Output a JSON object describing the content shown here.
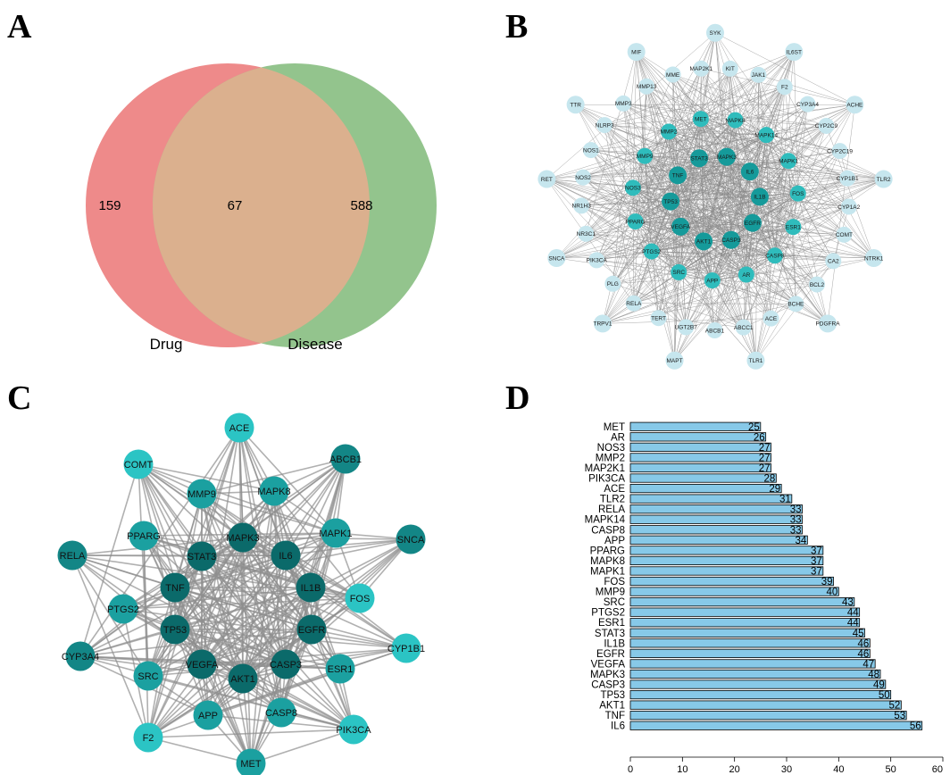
{
  "panels": {
    "a": "A",
    "b": "B",
    "c": "C",
    "d": "D"
  },
  "venn": {
    "left_only": "159",
    "intersection": "67",
    "right_only": "588",
    "left_label": "Drug",
    "right_label": "Disease",
    "left_color": "#ee8a8a",
    "right_color": "#93c48d",
    "overlap_color": "#dbb08e"
  },
  "network_b": {
    "colors": {
      "light": "#c6e6ee",
      "mid": "#2fbcbc",
      "dark": "#159a9a",
      "edge": "#8a8a8a"
    },
    "outer": [
      "SYK",
      "IL6ST",
      "ACHE",
      "TLR2",
      "NTRK1",
      "PDGFRA",
      "TLR1",
      "MAPT",
      "TRPV1",
      "SNCA",
      "RET",
      "TTR",
      "MIF"
    ],
    "middle": [
      "MAP2K1",
      "KIT",
      "JAK1",
      "F2",
      "CYP3A4",
      "CYP2C9",
      "CYP2C19",
      "CYP1B1",
      "CYP1A2",
      "COMT",
      "CA2",
      "BCL2",
      "BCHE",
      "ACE",
      "ABCC1",
      "ABCB1",
      "UGT2B7",
      "TERT",
      "RELA",
      "PLG",
      "PIK3CA",
      "NR3C1",
      "NR1H3",
      "NOS2",
      "NOS1",
      "NLRP3",
      "MMP3",
      "MMP13",
      "MME"
    ],
    "inner": [
      "MET",
      "MAPK8",
      "MAPK14",
      "MAPK1",
      "FOS",
      "ESR1",
      "CASP8",
      "AR",
      "APP",
      "SRC",
      "PTGS2",
      "PPARG",
      "NOS3",
      "MMP9",
      "MMP2"
    ],
    "core": [
      "MAPK3",
      "IL6",
      "IL1B",
      "EGFR",
      "CASP3",
      "AKT1",
      "VEGFA",
      "TP53",
      "TNF",
      "STAT3"
    ]
  },
  "network_c": {
    "nodes": [
      "ACE",
      "COMT",
      "ABCB1",
      "MMP9",
      "MAPK8",
      "PPARG",
      "MAPK3",
      "MAPK1",
      "SNCA",
      "RELA",
      "STAT3",
      "IL6",
      "TNF",
      "IL1B",
      "FOS",
      "PTGS2",
      "TP53",
      "EGFR",
      "CYP1B1",
      "CYP3A4",
      "VEGFA",
      "CASP3",
      "ESR1",
      "SRC",
      "AKT1",
      "APP",
      "CASP8",
      "F2",
      "PIK3CA",
      "MET"
    ]
  },
  "chart_data": {
    "type": "bar",
    "orientation": "horizontal",
    "categories": [
      "MET",
      "AR",
      "NOS3",
      "MMP2",
      "MAP2K1",
      "PIK3CA",
      "ACE",
      "TLR2",
      "RELA",
      "MAPK14",
      "CASP8",
      "APP",
      "PPARG",
      "MAPK8",
      "MAPK1",
      "FOS",
      "MMP9",
      "SRC",
      "PTGS2",
      "ESR1",
      "STAT3",
      "IL1B",
      "EGFR",
      "VEGFA",
      "MAPK3",
      "CASP3",
      "TP53",
      "AKT1",
      "TNF",
      "IL6"
    ],
    "values": [
      25,
      26,
      27,
      27,
      27,
      28,
      29,
      31,
      33,
      33,
      33,
      34,
      37,
      37,
      37,
      39,
      40,
      43,
      44,
      44,
      45,
      46,
      46,
      47,
      48,
      49,
      50,
      52,
      53,
      56
    ],
    "xlim": [
      0,
      60
    ],
    "xticks": [
      "0",
      "10",
      "20",
      "30",
      "40",
      "50",
      "60"
    ],
    "bar_color": "#87c9e8",
    "title": "",
    "xlabel": "",
    "ylabel": ""
  }
}
